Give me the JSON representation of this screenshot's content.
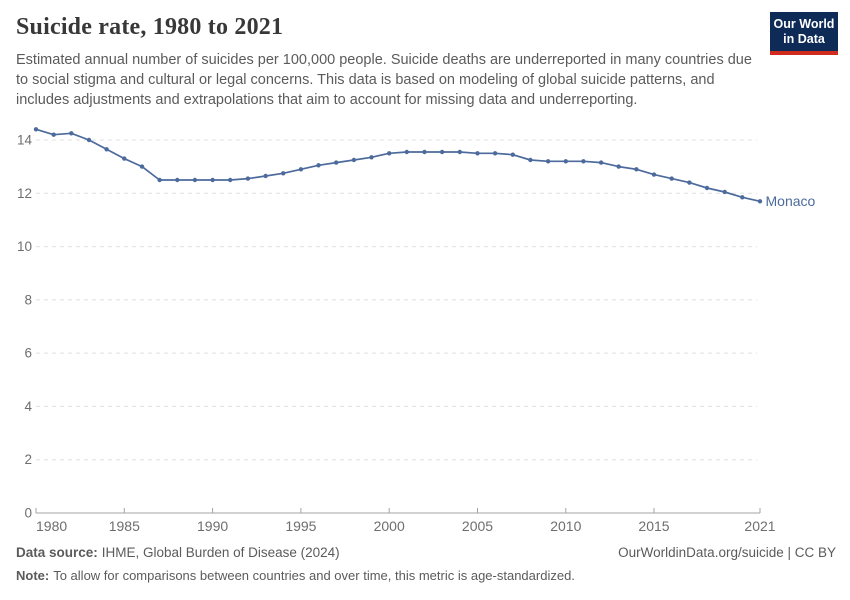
{
  "header": {
    "title": "Suicide rate, 1980 to 2021",
    "subtitle": "Estimated annual number of suicides per 100,000 people. Suicide deaths are underreported in many countries due to social stigma and cultural or legal concerns. This data is based on modeling of global suicide patterns, and includes adjustments and extrapolations that aim to account for missing data and underreporting.",
    "logo": {
      "line1": "Our World",
      "line2": "in Data",
      "bg_color": "#0e2a56",
      "stripe_color": "#cf2b1e"
    }
  },
  "chart_data": {
    "type": "line",
    "title": "Suicide rate, 1980 to 2021",
    "xlabel": "",
    "ylabel": "",
    "x_range": [
      1980,
      2021
    ],
    "ylim": [
      0,
      14.6
    ],
    "grid": true,
    "legend_position": "end-of-line",
    "y_ticks": [
      0,
      2,
      4,
      6,
      8,
      10,
      12,
      14
    ],
    "x_ticks": [
      1980,
      1985,
      1990,
      1995,
      2000,
      2005,
      2010,
      2015,
      2021
    ],
    "x": [
      1980,
      1981,
      1982,
      1983,
      1984,
      1985,
      1986,
      1987,
      1988,
      1989,
      1990,
      1991,
      1992,
      1993,
      1994,
      1995,
      1996,
      1997,
      1998,
      1999,
      2000,
      2001,
      2002,
      2003,
      2004,
      2005,
      2006,
      2007,
      2008,
      2009,
      2010,
      2011,
      2012,
      2013,
      2014,
      2015,
      2016,
      2017,
      2018,
      2019,
      2020,
      2021
    ],
    "series": [
      {
        "name": "Monaco",
        "color": "#4c6a9c",
        "values": [
          14.4,
          14.2,
          14.25,
          14.0,
          13.65,
          13.3,
          13.0,
          12.5,
          12.5,
          12.5,
          12.5,
          12.5,
          12.55,
          12.65,
          12.75,
          12.9,
          13.05,
          13.15,
          13.25,
          13.35,
          13.5,
          13.55,
          13.55,
          13.55,
          13.55,
          13.5,
          13.5,
          13.45,
          13.25,
          13.2,
          13.2,
          13.2,
          13.15,
          13.0,
          12.9,
          12.7,
          12.55,
          12.4,
          12.2,
          12.05,
          11.85,
          11.7
        ]
      }
    ]
  },
  "footer": {
    "source_label": "Data source:",
    "source_text": "IHME, Global Burden of Disease (2024)",
    "link_text": "OurWorldinData.org/suicide | CC BY",
    "note_label": "Note:",
    "note_text": "To allow for comparisons between countries and over time, this metric is age-standardized."
  }
}
